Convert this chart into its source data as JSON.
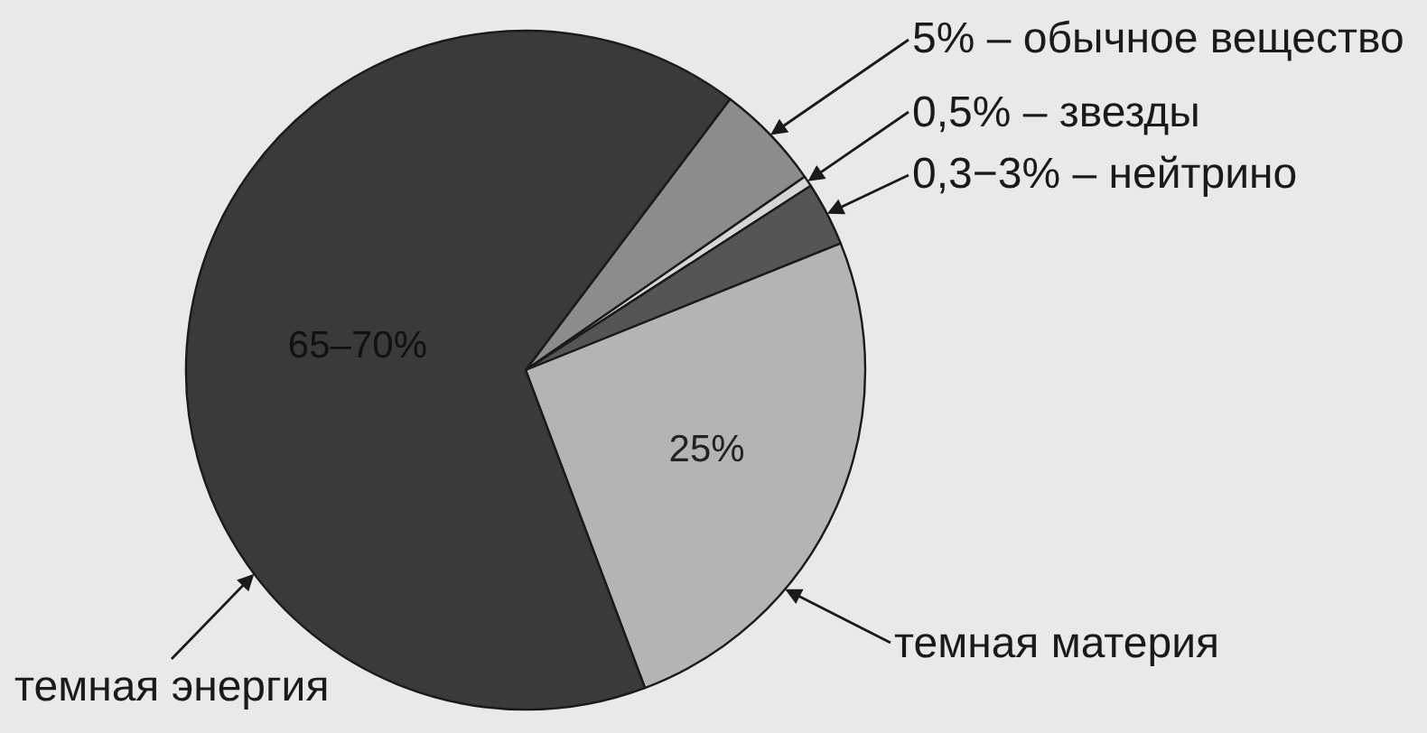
{
  "chart_data": {
    "type": "pie",
    "categories": [
      "5% – обычное вещество",
      "0,5% – звезды",
      "0,3−3% – нейтрино",
      "темная материя",
      "темная энергия"
    ],
    "values": [
      5,
      0.5,
      3,
      25,
      65
    ],
    "colors": [
      "#8c8c8c",
      "#d6d6d6",
      "#555555",
      "#b4b4b4",
      "#3a3a3a"
    ],
    "value_labels": [
      null,
      null,
      null,
      "25%",
      "65–70%"
    ]
  }
}
